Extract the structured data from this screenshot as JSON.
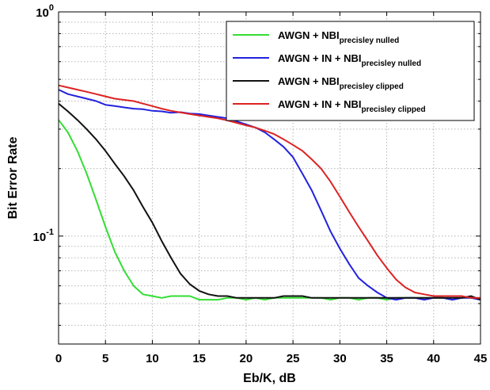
{
  "chart_data": {
    "type": "line",
    "title": "",
    "xlabel": "Eb/K, dB",
    "ylabel": "Bit Error Rate",
    "xlim": [
      0,
      45
    ],
    "ylim": [
      0.033,
      1
    ],
    "yscale": "log",
    "grid": true,
    "legend_position": "top-right",
    "x_ticks": [
      "0",
      "5",
      "10",
      "15",
      "20",
      "25",
      "30",
      "35",
      "40",
      "45"
    ],
    "y_tick_labels": [
      {
        "value": 1,
        "base": "10",
        "exp": "0"
      },
      {
        "value": 0.1,
        "base": "10",
        "exp": "-1"
      }
    ],
    "series": [
      {
        "name": "AWGN  + NBI",
        "subscript": "precisley nulled",
        "color": "#33dd33",
        "x": [
          0,
          1,
          2,
          3,
          4,
          5,
          6,
          7,
          8,
          9,
          10,
          11,
          12,
          13,
          14,
          15,
          16,
          17,
          18,
          19,
          20,
          21,
          22,
          23,
          24,
          25,
          26,
          27,
          28,
          29,
          30,
          31,
          32,
          33,
          34,
          35,
          36,
          37,
          38,
          39,
          40,
          41,
          42,
          43,
          44,
          45
        ],
        "y": [
          0.33,
          0.29,
          0.24,
          0.19,
          0.145,
          0.11,
          0.085,
          0.07,
          0.06,
          0.055,
          0.054,
          0.053,
          0.054,
          0.054,
          0.054,
          0.052,
          0.052,
          0.052,
          0.053,
          0.053,
          0.052,
          0.053,
          0.052,
          0.053,
          0.053,
          0.053,
          0.053,
          0.053,
          0.053,
          0.052,
          0.053,
          0.053,
          0.052,
          0.053,
          0.053,
          0.052,
          0.053,
          0.053,
          0.053,
          0.053,
          0.053,
          0.053,
          0.052,
          0.053,
          0.053,
          0.052
        ]
      },
      {
        "name": "AWGN + IN + NBI",
        "subscript": "precisley nulled",
        "color": "#2222dd",
        "x": [
          0,
          1,
          2,
          3,
          4,
          5,
          6,
          7,
          8,
          9,
          10,
          11,
          12,
          13,
          14,
          15,
          16,
          17,
          18,
          19,
          20,
          21,
          22,
          23,
          24,
          25,
          26,
          27,
          28,
          29,
          30,
          31,
          32,
          33,
          34,
          35,
          36,
          37,
          38,
          39,
          40,
          41,
          42,
          43,
          44,
          45
        ],
        "y": [
          0.45,
          0.43,
          0.42,
          0.41,
          0.4,
          0.385,
          0.38,
          0.375,
          0.37,
          0.368,
          0.362,
          0.36,
          0.355,
          0.357,
          0.352,
          0.35,
          0.345,
          0.34,
          0.335,
          0.325,
          0.315,
          0.305,
          0.29,
          0.27,
          0.25,
          0.225,
          0.19,
          0.16,
          0.13,
          0.105,
          0.088,
          0.075,
          0.065,
          0.06,
          0.056,
          0.053,
          0.052,
          0.053,
          0.053,
          0.052,
          0.053,
          0.053,
          0.052,
          0.053,
          0.053,
          0.052
        ]
      },
      {
        "name": "AWGN  + NBI",
        "subscript": "precisley clipped",
        "color": "#111111",
        "x": [
          0,
          1,
          2,
          3,
          4,
          5,
          6,
          7,
          8,
          9,
          10,
          11,
          12,
          13,
          14,
          15,
          16,
          17,
          18,
          19,
          20,
          21,
          22,
          23,
          24,
          25,
          26,
          27,
          28,
          29,
          30,
          31,
          32,
          33,
          34,
          35,
          36,
          37,
          38,
          39,
          40,
          41,
          42,
          43,
          44,
          45
        ],
        "y": [
          0.39,
          0.36,
          0.33,
          0.3,
          0.27,
          0.24,
          0.21,
          0.185,
          0.16,
          0.135,
          0.115,
          0.095,
          0.08,
          0.068,
          0.061,
          0.057,
          0.055,
          0.054,
          0.054,
          0.053,
          0.053,
          0.053,
          0.053,
          0.053,
          0.054,
          0.054,
          0.054,
          0.053,
          0.053,
          0.053,
          0.053,
          0.053,
          0.053,
          0.053,
          0.053,
          0.053,
          0.053,
          0.053,
          0.053,
          0.053,
          0.053,
          0.053,
          0.053,
          0.053,
          0.054,
          0.052
        ]
      },
      {
        "name": "AWGN + IN + NBI",
        "subscript": "precisley clipped",
        "color": "#dd2222",
        "x": [
          0,
          1,
          2,
          3,
          4,
          5,
          6,
          7,
          8,
          9,
          10,
          11,
          12,
          13,
          14,
          15,
          16,
          17,
          18,
          19,
          20,
          21,
          22,
          23,
          24,
          25,
          26,
          27,
          28,
          29,
          30,
          31,
          32,
          33,
          34,
          35,
          36,
          37,
          38,
          39,
          40,
          41,
          42,
          43,
          44,
          45
        ],
        "y": [
          0.47,
          0.46,
          0.45,
          0.44,
          0.43,
          0.42,
          0.41,
          0.405,
          0.4,
          0.39,
          0.38,
          0.37,
          0.362,
          0.356,
          0.35,
          0.345,
          0.34,
          0.335,
          0.328,
          0.32,
          0.312,
          0.305,
          0.295,
          0.285,
          0.27,
          0.255,
          0.24,
          0.22,
          0.2,
          0.175,
          0.15,
          0.128,
          0.11,
          0.095,
          0.082,
          0.072,
          0.064,
          0.059,
          0.056,
          0.055,
          0.054,
          0.054,
          0.054,
          0.054,
          0.053,
          0.053
        ]
      }
    ]
  }
}
